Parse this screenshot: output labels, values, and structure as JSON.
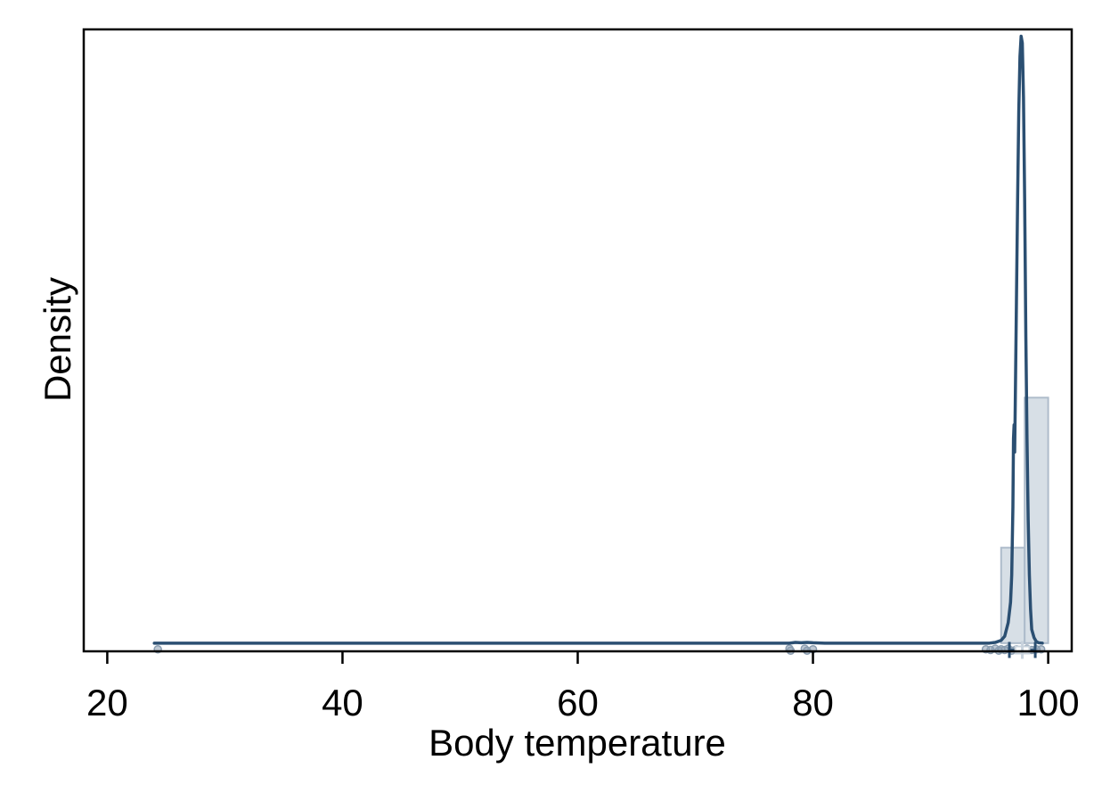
{
  "chart_data": {
    "type": "histogram with density curve",
    "title": "",
    "xlabel": "Body temperature",
    "ylabel": "Density",
    "xlim": [
      18,
      102
    ],
    "ylim": [
      -0.012,
      0.9
    ],
    "x_ticks": [
      20,
      40,
      60,
      80,
      100
    ],
    "x_tick_labels": [
      "20",
      "40",
      "60",
      "80",
      "100"
    ],
    "y_ticks_shown": false,
    "grid": false,
    "legend": "none",
    "colors": {
      "curve": "#2b4f72",
      "bar_fill": "#d3dbe3",
      "bar_stroke": "#aebccb",
      "points": "#8a9db0",
      "axis": "#000000"
    },
    "histogram_bins": [
      {
        "x0": 96.0,
        "x1": 98.0,
        "density": 0.14
      },
      {
        "x0": 98.0,
        "x1": 100.0,
        "density": 0.36
      }
    ],
    "density_curve": {
      "x": [
        24,
        78,
        78.5,
        79,
        79.5,
        80,
        81,
        95,
        95.5,
        96,
        96.3,
        96.6,
        96.8,
        96.9,
        97.0,
        97.05,
        97.1,
        97.15,
        97.2,
        97.3,
        97.4,
        97.5,
        97.6,
        97.7,
        97.8,
        97.9,
        98.0,
        98.1,
        98.2,
        98.3,
        98.4,
        98.5,
        98.6,
        98.8,
        99.0,
        99.2,
        99.5
      ],
      "y": [
        0,
        0,
        0.001,
        0.0005,
        0.001,
        0.0005,
        0,
        0,
        0.001,
        0.004,
        0.01,
        0.03,
        0.06,
        0.1,
        0.2,
        0.3,
        0.32,
        0.28,
        0.35,
        0.5,
        0.65,
        0.78,
        0.86,
        0.89,
        0.88,
        0.8,
        0.65,
        0.45,
        0.3,
        0.18,
        0.1,
        0.05,
        0.02,
        0.008,
        0.002,
        0.0005,
        0
      ]
    },
    "rug_points": [
      {
        "x": 24.3,
        "y": -0.009
      },
      {
        "x": 78.0,
        "y": -0.008
      },
      {
        "x": 78.1,
        "y": -0.011
      },
      {
        "x": 79.3,
        "y": -0.008
      },
      {
        "x": 79.5,
        "y": -0.011
      },
      {
        "x": 80.0,
        "y": -0.009
      },
      {
        "x": 94.7,
        "y": -0.009
      },
      {
        "x": 95.1,
        "y": -0.01
      },
      {
        "x": 95.5,
        "y": -0.008
      },
      {
        "x": 95.8,
        "y": -0.011
      },
      {
        "x": 96.0,
        "y": -0.009
      },
      {
        "x": 96.3,
        "y": -0.01
      },
      {
        "x": 96.6,
        "y": -0.008
      },
      {
        "x": 96.9,
        "y": -0.011
      },
      {
        "x": 97.3,
        "y": -0.009
      },
      {
        "x": 97.7,
        "y": -0.01
      },
      {
        "x": 98.2,
        "y": -0.008
      },
      {
        "x": 98.6,
        "y": -0.01
      },
      {
        "x": 99.0,
        "y": -0.009
      },
      {
        "x": 99.4,
        "y": -0.009
      }
    ],
    "box_summary": {
      "y": -0.01,
      "whisker_low": 96.7,
      "q1": 97.2,
      "median": 97.8,
      "q3": 98.4,
      "whisker_high": 98.9
    }
  }
}
